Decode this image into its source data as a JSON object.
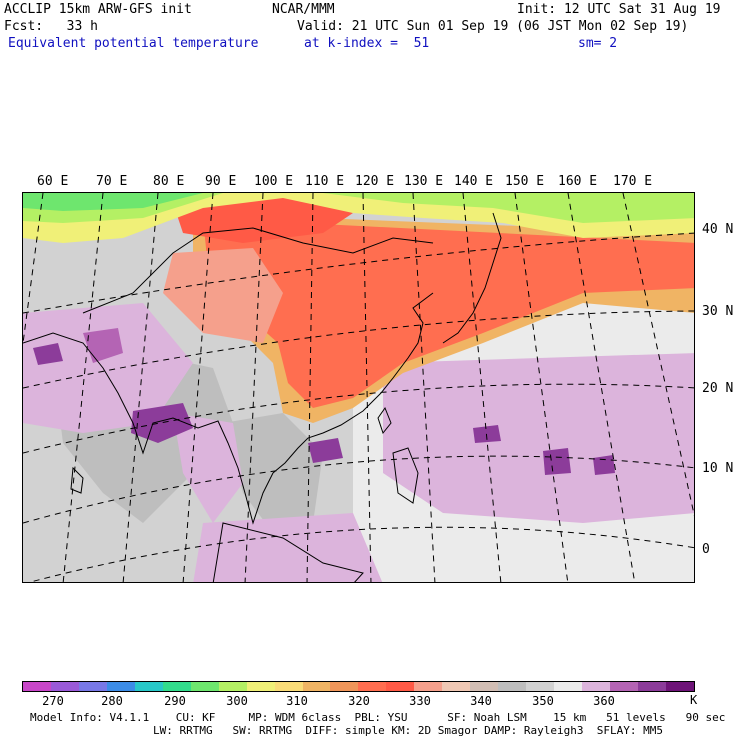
{
  "header": {
    "left1": "ACCLIP 15km ARW-GFS init",
    "center1": "NCAR/MMM",
    "right1": "Init: 12 UTC Sat 31 Aug 19",
    "left2": "Fcst:   33 h",
    "right2": "Valid: 21 UTC Sun 01 Sep 19 (06 JST Mon 02 Sep 19)",
    "field_name": "Equivalent potential temperature",
    "level": "at k-index =  51",
    "smoothing": "sm= 2"
  },
  "axes": {
    "longitudes": [
      "60 E",
      "70 E",
      "80 E",
      "90 E",
      "100 E",
      "110 E",
      "120 E",
      "130 E",
      "140 E",
      "150 E",
      "160 E",
      "170 E"
    ],
    "latitudes": [
      "40 N",
      "30 N",
      "20 N",
      "10 N",
      "0"
    ]
  },
  "colorbar": {
    "unit": "K",
    "ticks": [
      "270",
      "280",
      "290",
      "300",
      "310",
      "320",
      "330",
      "340",
      "350",
      "360"
    ],
    "colors": [
      "#c846c8",
      "#9a5ad8",
      "#7878e6",
      "#3c8ce6",
      "#28c8c8",
      "#32dc8c",
      "#6ee66e",
      "#b4f064",
      "#f0f078",
      "#fadc78",
      "#f0b464",
      "#f0965a",
      "#ff6e50",
      "#ff5a46",
      "#f5a08c",
      "#f0c8b4",
      "#d2beb4",
      "#bebebe",
      "#d2d2d2",
      "#ebebeb",
      "#dcb4dc",
      "#b464b4",
      "#8c3c9a",
      "#6e1478"
    ]
  },
  "footer": {
    "line1": "Model Info: V4.1.1    CU: KF     MP: WDM 6class  PBL: YSU      SF: Noah LSM    15 km   51 levels   90 sec",
    "line2": "LW: RRTMG   SW: RRTMG  DIFF: simple KM: 2D Smagor DAMP: Rayleigh3  SFLAY: MM5"
  }
}
